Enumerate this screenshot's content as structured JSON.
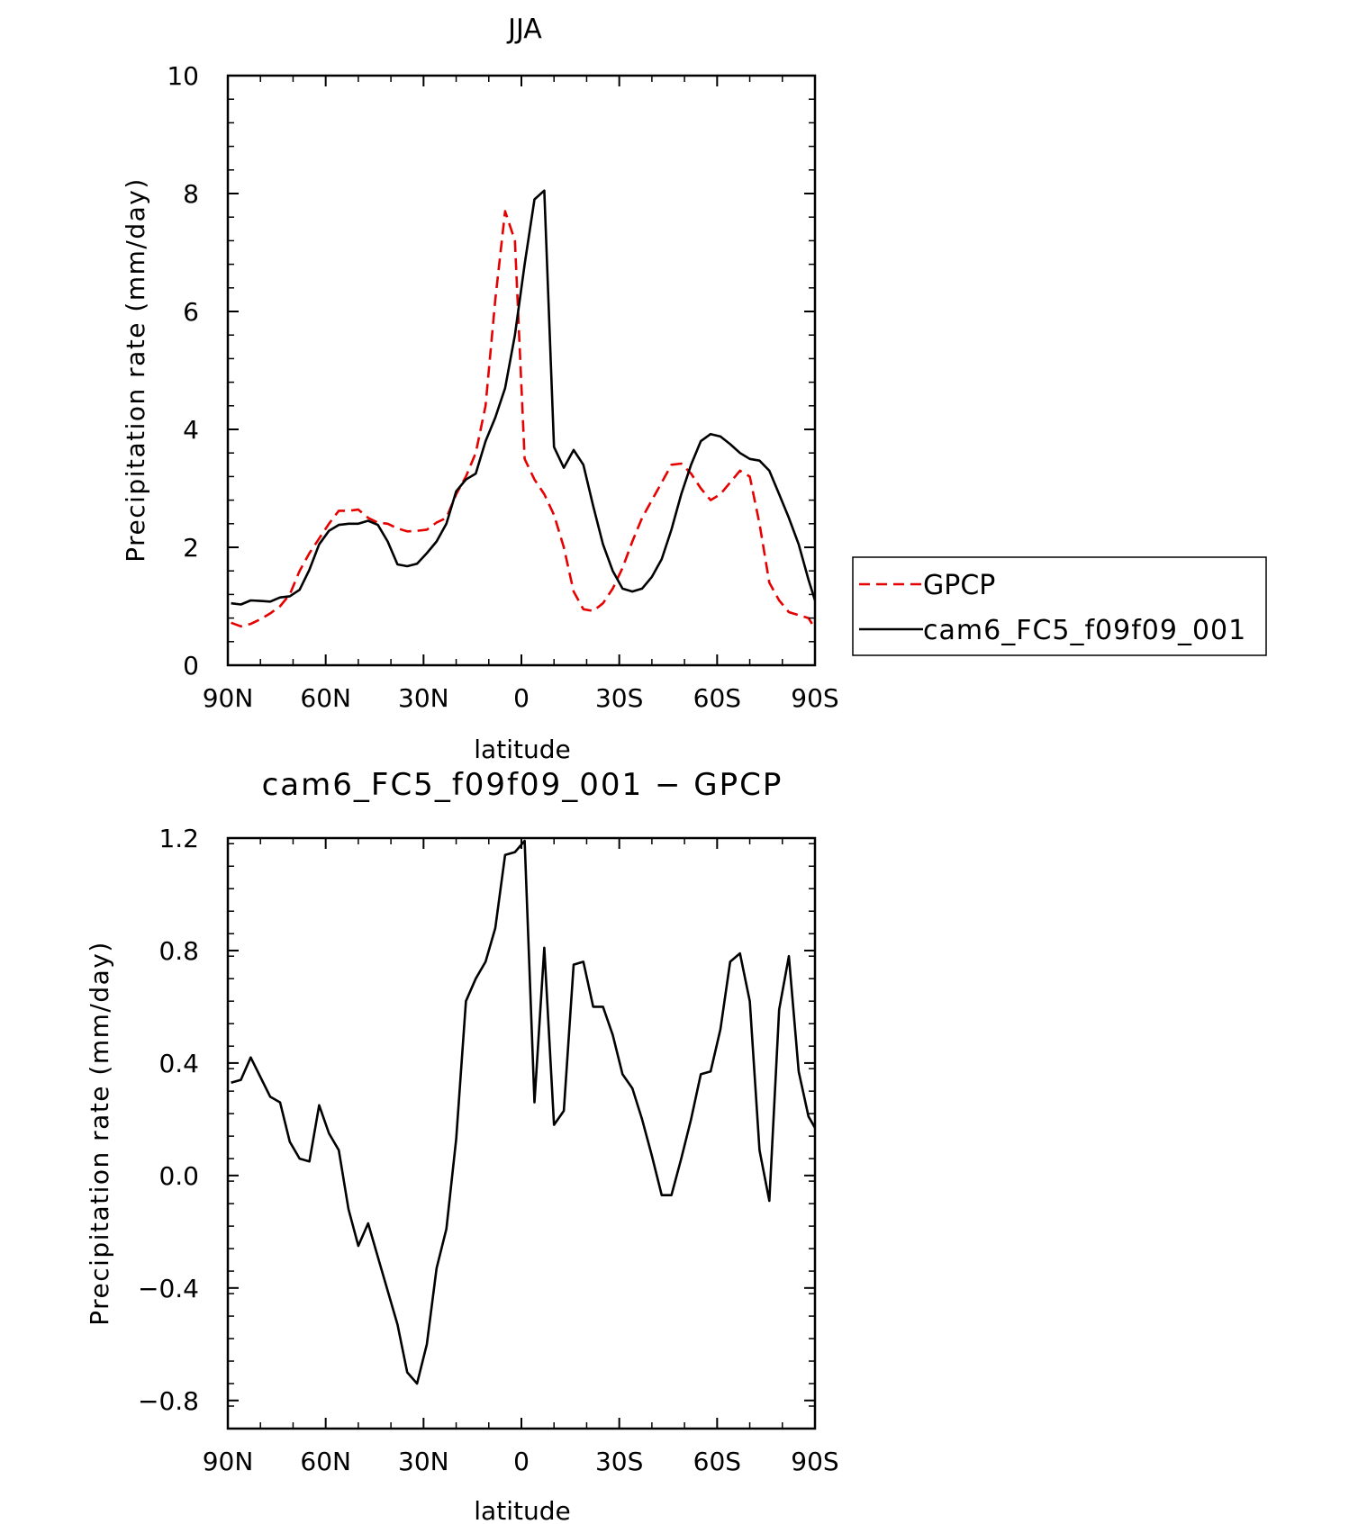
{
  "chart_data": [
    {
      "type": "line",
      "title": "JJA",
      "xlabel": "latitude",
      "ylabel": "Precipitation rate (mm/day)",
      "xlim": [
        90,
        -90
      ],
      "ylim": [
        0,
        10
      ],
      "x_ticks": [
        90,
        60,
        30,
        0,
        -30,
        -60,
        -90
      ],
      "x_tick_labels": [
        "90N",
        "60N",
        "30N",
        "0",
        "30S",
        "60S",
        "90S"
      ],
      "y_ticks": [
        0,
        2,
        4,
        6,
        8,
        10
      ],
      "y_tick_labels": [
        "0",
        "2",
        "4",
        "6",
        "8",
        "10"
      ],
      "legend": {
        "position": "right"
      },
      "series": [
        {
          "name": "GPCP",
          "color": "#e60000",
          "style": "dashed",
          "x": [
            89,
            86,
            83,
            80,
            77,
            74,
            71,
            68,
            65,
            62,
            59,
            56,
            53,
            50,
            47,
            44,
            41,
            38,
            35,
            32,
            29,
            26,
            23,
            20,
            17,
            14,
            11,
            8,
            5,
            2,
            -1,
            -4,
            -7,
            -10,
            -13,
            -16,
            -19,
            -22,
            -25,
            -28,
            -31,
            -34,
            -37,
            -40,
            -43,
            -46,
            -49,
            -52,
            -55,
            -58,
            -61,
            -64,
            -67,
            -70,
            -73,
            -76,
            -79,
            -82,
            -85,
            -88,
            -90
          ],
          "y": [
            0.72,
            0.66,
            0.7,
            0.78,
            0.88,
            1.0,
            1.2,
            1.6,
            1.9,
            2.15,
            2.4,
            2.62,
            2.62,
            2.64,
            2.5,
            2.42,
            2.4,
            2.32,
            2.27,
            2.28,
            2.3,
            2.42,
            2.5,
            2.9,
            3.2,
            3.6,
            4.4,
            6.2,
            7.7,
            7.2,
            3.5,
            3.15,
            2.9,
            2.55,
            2.0,
            1.25,
            0.95,
            0.92,
            1.05,
            1.3,
            1.65,
            2.1,
            2.5,
            2.8,
            3.1,
            3.4,
            3.42,
            3.25,
            3.0,
            2.8,
            2.9,
            3.1,
            3.3,
            3.2,
            2.4,
            1.4,
            1.1,
            0.9,
            0.85,
            0.8,
            0.62
          ]
        },
        {
          "name": "cam6_FC5_f09f09_001",
          "color": "#000000",
          "style": "solid",
          "x": [
            89,
            86,
            83,
            80,
            77,
            74,
            71,
            68,
            65,
            62,
            59,
            56,
            53,
            50,
            47,
            44,
            41,
            38,
            35,
            32,
            29,
            26,
            23,
            20,
            17,
            14,
            11,
            8,
            5,
            2,
            -1,
            -4,
            -7,
            -10,
            -13,
            -16,
            -19,
            -22,
            -25,
            -28,
            -31,
            -34,
            -37,
            -40,
            -43,
            -46,
            -49,
            -52,
            -55,
            -58,
            -61,
            -64,
            -67,
            -70,
            -73,
            -76,
            -79,
            -82,
            -85,
            -88,
            -90
          ],
          "y": [
            1.05,
            1.03,
            1.1,
            1.09,
            1.08,
            1.15,
            1.17,
            1.28,
            1.62,
            2.05,
            2.28,
            2.38,
            2.4,
            2.4,
            2.45,
            2.38,
            2.1,
            1.71,
            1.68,
            1.72,
            1.9,
            2.1,
            2.4,
            2.95,
            3.15,
            3.25,
            3.8,
            4.2,
            4.7,
            5.6,
            6.8,
            7.9,
            8.05,
            3.7,
            3.35,
            3.65,
            3.4,
            2.7,
            2.05,
            1.6,
            1.3,
            1.25,
            1.3,
            1.5,
            1.8,
            2.3,
            2.9,
            3.4,
            3.8,
            3.92,
            3.88,
            3.75,
            3.6,
            3.5,
            3.47,
            3.3,
            2.9,
            2.5,
            2.05,
            1.45,
            1.1
          ]
        }
      ]
    },
    {
      "type": "line",
      "title": "cam6_FC5_f09f09_001 − GPCP",
      "xlabel": "latitude",
      "ylabel": "Precipitation rate (mm/day)",
      "xlim": [
        90,
        -90
      ],
      "ylim": [
        -0.9,
        1.2
      ],
      "x_ticks": [
        90,
        60,
        30,
        0,
        -30,
        -60,
        -90
      ],
      "x_tick_labels": [
        "90N",
        "60N",
        "30N",
        "0",
        "30S",
        "60S",
        "90S"
      ],
      "y_ticks": [
        -0.8,
        -0.4,
        0.0,
        0.4,
        0.8,
        1.2
      ],
      "y_tick_labels": [
        "−0.8",
        "−0.4",
        "0.0",
        "0.4",
        "0.8",
        "1.2"
      ],
      "series": [
        {
          "name": "cam6_FC5_f09f09_001 - GPCP",
          "color": "#000000",
          "style": "solid",
          "x": [
            89,
            86,
            83,
            80,
            77,
            74,
            71,
            68,
            65,
            62,
            59,
            56,
            53,
            50,
            47,
            44,
            41,
            38,
            35,
            32,
            29,
            26,
            23,
            20,
            17,
            14,
            11,
            8,
            5,
            2,
            -1,
            -4,
            -7,
            -10,
            -13,
            -16,
            -19,
            -22,
            -25,
            -28,
            -31,
            -34,
            -37,
            -40,
            -43,
            -46,
            -49,
            -52,
            -55,
            -58,
            -61,
            -64,
            -67,
            -70,
            -73,
            -76,
            -79,
            -82,
            -85,
            -88,
            -90
          ],
          "y": [
            0.33,
            0.34,
            0.42,
            0.35,
            0.28,
            0.26,
            0.12,
            0.06,
            0.05,
            0.25,
            0.15,
            0.09,
            -0.12,
            -0.25,
            -0.17,
            -0.29,
            -0.41,
            -0.53,
            -0.7,
            -0.74,
            -0.6,
            -0.33,
            -0.19,
            0.13,
            0.62,
            0.7,
            0.76,
            0.88,
            1.14,
            1.15,
            1.19,
            0.26,
            0.81,
            0.18,
            0.23,
            0.75,
            0.76,
            0.6,
            0.6,
            0.5,
            0.36,
            0.31,
            0.2,
            0.07,
            -0.07,
            -0.07,
            0.06,
            0.2,
            0.36,
            0.37,
            0.52,
            0.76,
            0.79,
            0.62,
            0.09,
            -0.09,
            0.59,
            0.78,
            0.37,
            0.21,
            0.17
          ]
        }
      ]
    }
  ]
}
